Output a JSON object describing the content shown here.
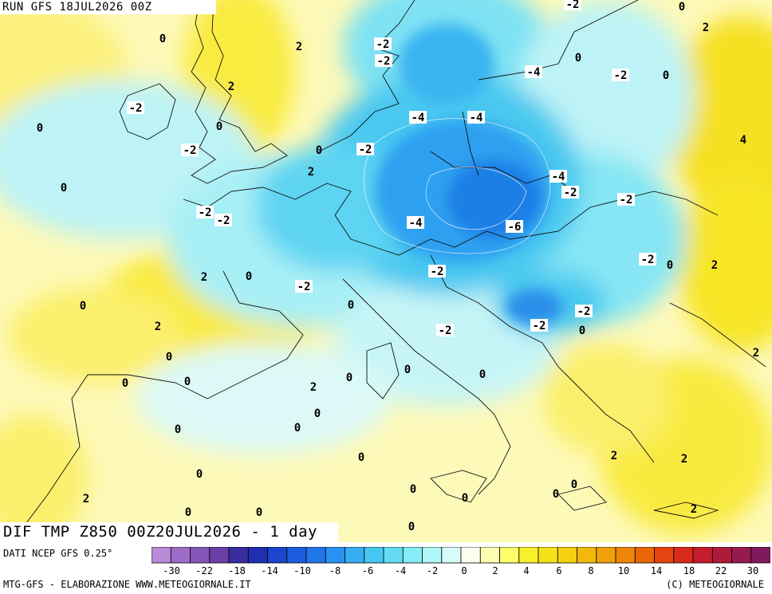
{
  "header": {
    "run": "RUN GFS 18JUL2026 00Z",
    "field": "DIF TMP Z850 00Z20JUL2026 - 1 day"
  },
  "footer": {
    "source": "DATI NCEP GFS 0.25°",
    "credit_left": "MTG-GFS - ELABORAZIONE WWW.METEOGIORNALE.IT",
    "credit_right": "(C) METEOGIORNALE"
  },
  "colorbar": {
    "colors": [
      "#b98ad6",
      "#9e6cc8",
      "#8456b8",
      "#6a3fa8",
      "#3a2c9e",
      "#1f2fb0",
      "#1a45cc",
      "#1d5ee0",
      "#2176ea",
      "#2a92f0",
      "#35aef3",
      "#48c6f2",
      "#63dcf2",
      "#86ecf5",
      "#aef6f7",
      "#d6fbf9",
      "#fefef0",
      "#fefeb0",
      "#fefe6a",
      "#f8f02a",
      "#f5e21a",
      "#f4d010",
      "#f2b90c",
      "#f0a00a",
      "#ee8509",
      "#ea6508",
      "#e54410",
      "#d82a1a",
      "#c41d2c",
      "#ad1a3c",
      "#951a50",
      "#801a5e"
    ],
    "tick_labels": [
      "-30",
      "-22",
      "-18",
      "-14",
      "-10",
      "-8",
      "-6",
      "-4",
      "-2",
      "0",
      "2",
      "4",
      "6",
      "8",
      "10",
      "14",
      "18",
      "22",
      "30"
    ]
  },
  "map_labels": [
    {
      "text": "0"
    },
    {
      "text": "2"
    },
    {
      "text": "2"
    },
    {
      "text": "-2"
    },
    {
      "text": "0"
    },
    {
      "text": "0"
    },
    {
      "text": "-2"
    },
    {
      "text": "0"
    },
    {
      "text": "0"
    },
    {
      "text": "2"
    },
    {
      "text": "-2"
    },
    {
      "text": "-2"
    },
    {
      "text": "2"
    },
    {
      "text": "0"
    },
    {
      "text": "-2"
    },
    {
      "text": "0"
    },
    {
      "text": "2"
    },
    {
      "text": "0"
    },
    {
      "text": "0"
    },
    {
      "text": "0"
    },
    {
      "text": "0"
    },
    {
      "text": "0"
    },
    {
      "text": "2"
    },
    {
      "text": "0"
    },
    {
      "text": "0"
    },
    {
      "text": "0"
    },
    {
      "text": "0"
    },
    {
      "text": "0"
    },
    {
      "text": "0"
    },
    {
      "text": "2"
    },
    {
      "text": "0"
    },
    {
      "text": "0"
    },
    {
      "text": "-2"
    },
    {
      "text": "-2"
    },
    {
      "text": "-4"
    },
    {
      "text": "-4"
    },
    {
      "text": "-4"
    },
    {
      "text": "-4"
    },
    {
      "text": "-6"
    },
    {
      "text": "-2"
    },
    {
      "text": "-2"
    },
    {
      "text": "-2"
    },
    {
      "text": "-2"
    },
    {
      "text": "-2"
    },
    {
      "text": "-2"
    },
    {
      "text": "0"
    },
    {
      "text": "-4"
    },
    {
      "text": "-2"
    },
    {
      "text": "-2"
    },
    {
      "text": "0"
    },
    {
      "text": "0"
    },
    {
      "text": "0"
    },
    {
      "text": "-2"
    },
    {
      "text": "0"
    },
    {
      "text": "2"
    },
    {
      "text": "0"
    },
    {
      "text": "0"
    },
    {
      "text": "2"
    },
    {
      "text": "0"
    },
    {
      "text": "4"
    },
    {
      "text": "2"
    },
    {
      "text": "2"
    },
    {
      "text": "2"
    },
    {
      "text": "2"
    },
    {
      "text": "0"
    },
    {
      "text": "0"
    },
    {
      "text": "0"
    },
    {
      "text": "-2"
    }
  ]
}
